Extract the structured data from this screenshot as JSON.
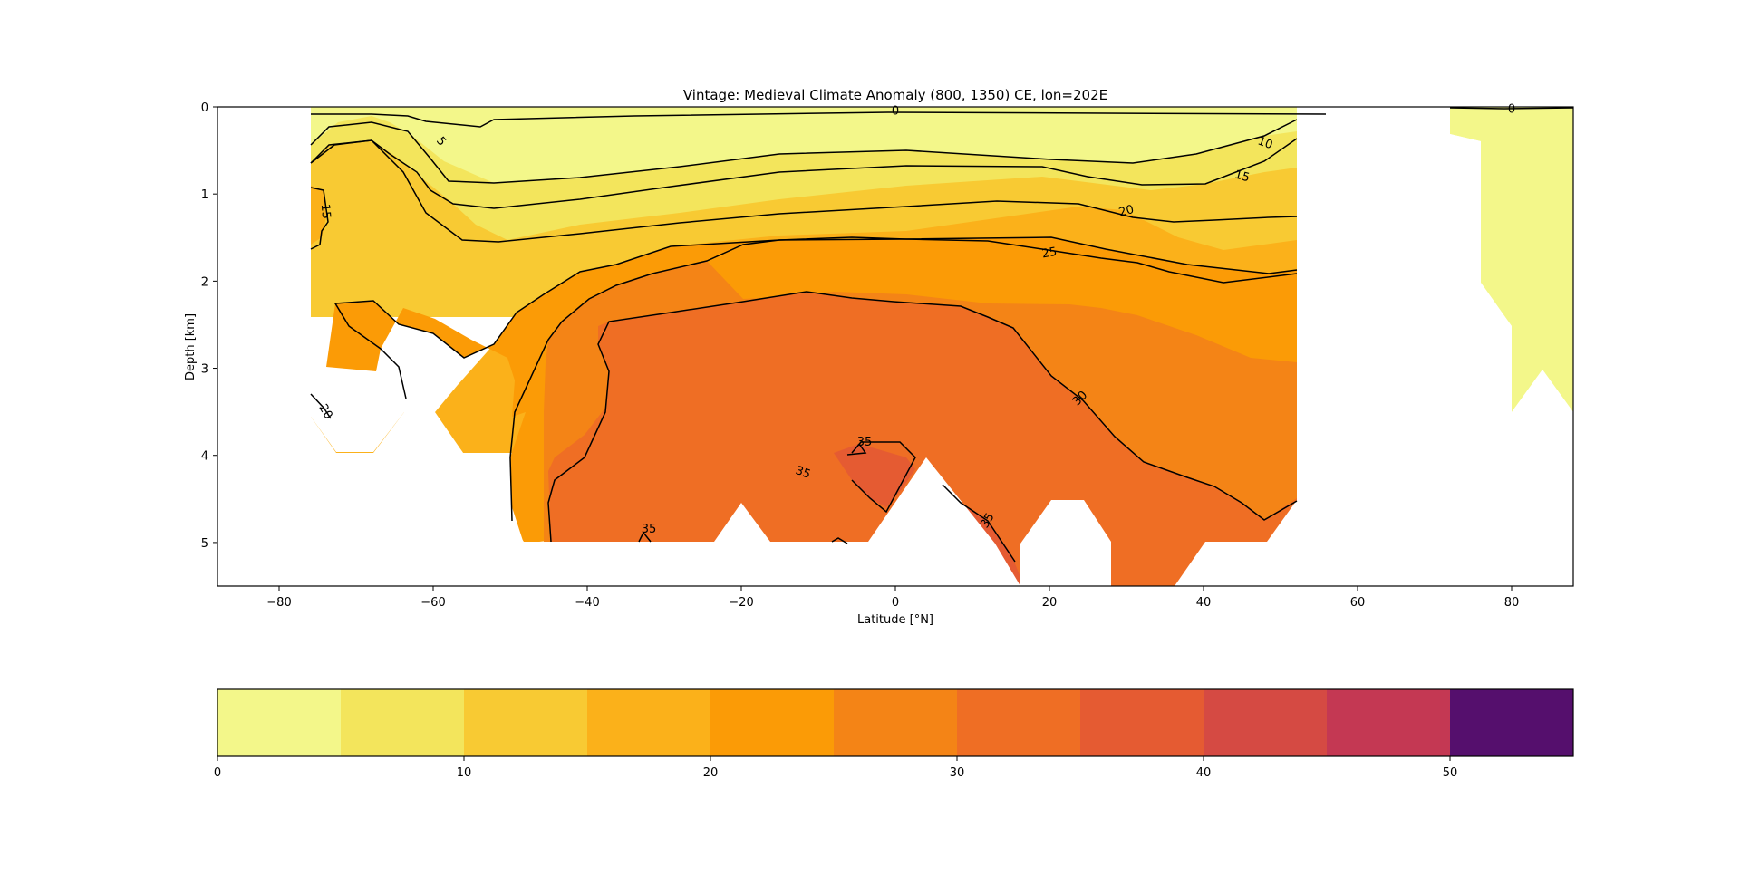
{
  "chart_data": [
    {
      "type": "contourf",
      "title": "Vintage: Medieval Climate Anomaly (800, 1350) CE, lon=202E",
      "xlabel": "Latitude [°N]",
      "ylabel": "Depth [km]",
      "xlim": [
        -88,
        88
      ],
      "ylim": [
        5.5,
        0
      ],
      "y_inverted": true,
      "xticks": [
        "−80",
        "−60",
        "−40",
        "−20",
        "0",
        "20",
        "40",
        "60",
        "80"
      ],
      "xtick_values": [
        -80,
        -60,
        -40,
        -20,
        0,
        20,
        40,
        60,
        80
      ],
      "yticks": [
        "0",
        "1",
        "2",
        "3",
        "4",
        "5"
      ],
      "ytick_values": [
        0,
        1,
        2,
        3,
        4,
        5
      ],
      "grid": false,
      "contour_levels": [
        0,
        5,
        10,
        15,
        20,
        25,
        30,
        35
      ],
      "contour_labels": [
        {
          "text": "0",
          "x": 0,
          "y": 0.05,
          "rotation": 0
        },
        {
          "text": "0",
          "x": 80,
          "y": 0.03,
          "rotation": 0
        },
        {
          "text": "5",
          "x": -59,
          "y": 0.4,
          "rotation": 50
        },
        {
          "text": "10",
          "x": 48,
          "y": 0.42,
          "rotation": 20
        },
        {
          "text": "15",
          "x": 45,
          "y": 0.8,
          "rotation": 15
        },
        {
          "text": "15",
          "x": -74,
          "y": 1.2,
          "rotation": 85
        },
        {
          "text": "20",
          "x": 30,
          "y": 1.2,
          "rotation": -15
        },
        {
          "text": "20",
          "x": -74,
          "y": 3.5,
          "rotation": 60
        },
        {
          "text": "25",
          "x": 20,
          "y": 1.68,
          "rotation": -10
        },
        {
          "text": "30",
          "x": 24,
          "y": 3.35,
          "rotation": -45
        },
        {
          "text": "35",
          "x": -4,
          "y": 3.85,
          "rotation": 0
        },
        {
          "text": "35",
          "x": -12,
          "y": 4.2,
          "rotation": 20
        },
        {
          "text": "35",
          "x": 12,
          "y": 4.75,
          "rotation": -60
        },
        {
          "text": "35",
          "x": -32,
          "y": 4.85,
          "rotation": 0
        }
      ]
    },
    {
      "type": "colorbar",
      "boundaries": [
        0,
        5,
        10,
        15,
        20,
        25,
        30,
        35,
        40,
        45,
        50,
        55
      ],
      "tick_values": [
        0,
        10,
        20,
        30,
        40,
        50
      ],
      "ticks": [
        "0",
        "10",
        "20",
        "30",
        "40",
        "50"
      ],
      "colors": [
        "#f3f78a",
        "#f3e55c",
        "#f8ca33",
        "#fbb11a",
        "#fb9b06",
        "#f48416",
        "#ef6e24",
        "#e55b32",
        "#d54a43",
        "#c43853",
        "#550f6d"
      ],
      "xlim": [
        0,
        55
      ]
    }
  ]
}
